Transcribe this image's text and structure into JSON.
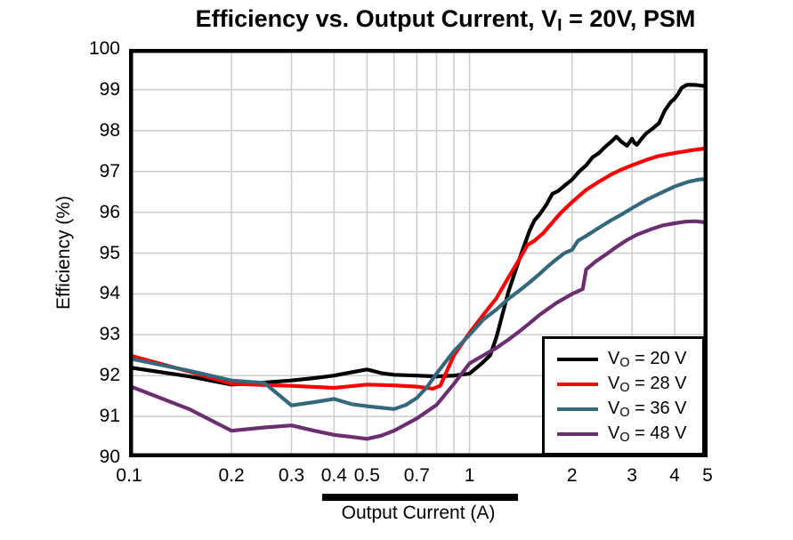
{
  "title": {
    "pre": "Efficiency vs. Output Current, V",
    "sub": "I",
    "post": " = 20V, PSM"
  },
  "colors": {
    "grid": "#CCCCCC",
    "frame": "#000000",
    "background": "#FFFFFF"
  },
  "legend": {
    "entries": [
      {
        "pre": "V",
        "sub": "O",
        "post": " = 20 V"
      },
      {
        "pre": "V",
        "sub": "O",
        "post": " = 28 V"
      },
      {
        "pre": "V",
        "sub": "O",
        "post": " = 36 V"
      },
      {
        "pre": "V",
        "sub": "O",
        "post": " = 48 V"
      }
    ]
  },
  "chart_data": {
    "type": "line",
    "title": "Efficiency vs. Output Current, VI = 20V, PSM",
    "xlabel": "Output Current (A)",
    "ylabel": "Efficiency (%)",
    "xscale": "log",
    "xlim": [
      0.1,
      5
    ],
    "ylim": [
      90,
      100
    ],
    "grid": true,
    "legend_position": "lower-right",
    "xticks": {
      "values": [
        0.1,
        0.2,
        0.3,
        0.4,
        0.5,
        0.7,
        1,
        2,
        3,
        4,
        5
      ],
      "labels": [
        "0.1",
        "0.2",
        "0.3",
        "0.4",
        "0.5",
        "0.7",
        "1",
        "2",
        "3",
        "4",
        "5"
      ]
    },
    "yticks": {
      "values": [
        90,
        91,
        92,
        93,
        94,
        95,
        96,
        97,
        98,
        99,
        100
      ],
      "labels": [
        "90",
        "91",
        "92",
        "93",
        "94",
        "95",
        "96",
        "97",
        "98",
        "99",
        "100"
      ]
    },
    "xgrid": [
      0.2,
      0.3,
      0.4,
      0.5,
      0.6,
      0.7,
      0.8,
      0.9,
      1,
      2,
      3,
      4
    ],
    "ygrid": [
      91,
      92,
      93,
      94,
      95,
      96,
      97,
      98,
      99
    ],
    "series": [
      {
        "id": "vo-20v",
        "name": "VO = 20 V",
        "color": "#000000",
        "points": [
          [
            0.1,
            92.2
          ],
          [
            0.15,
            91.98
          ],
          [
            0.2,
            91.78
          ],
          [
            0.25,
            91.83
          ],
          [
            0.3,
            91.88
          ],
          [
            0.35,
            91.94
          ],
          [
            0.4,
            92.0
          ],
          [
            0.45,
            92.08
          ],
          [
            0.5,
            92.15
          ],
          [
            0.55,
            92.06
          ],
          [
            0.6,
            92.02
          ],
          [
            0.7,
            92.0
          ],
          [
            0.8,
            91.98
          ],
          [
            0.9,
            92.0
          ],
          [
            1.0,
            92.05
          ],
          [
            1.08,
            92.28
          ],
          [
            1.15,
            92.5
          ],
          [
            1.2,
            92.95
          ],
          [
            1.3,
            94.05
          ],
          [
            1.4,
            94.85
          ],
          [
            1.45,
            95.2
          ],
          [
            1.5,
            95.55
          ],
          [
            1.55,
            95.8
          ],
          [
            1.6,
            95.93
          ],
          [
            1.68,
            96.18
          ],
          [
            1.75,
            96.45
          ],
          [
            1.82,
            96.52
          ],
          [
            1.9,
            96.65
          ],
          [
            2.0,
            96.8
          ],
          [
            2.1,
            97.0
          ],
          [
            2.2,
            97.15
          ],
          [
            2.3,
            97.35
          ],
          [
            2.4,
            97.45
          ],
          [
            2.5,
            97.6
          ],
          [
            2.6,
            97.72
          ],
          [
            2.7,
            97.85
          ],
          [
            2.8,
            97.72
          ],
          [
            2.9,
            97.63
          ],
          [
            3.0,
            97.8
          ],
          [
            3.05,
            97.7
          ],
          [
            3.1,
            97.65
          ],
          [
            3.2,
            97.8
          ],
          [
            3.3,
            97.93
          ],
          [
            3.45,
            98.05
          ],
          [
            3.6,
            98.18
          ],
          [
            3.75,
            98.5
          ],
          [
            3.9,
            98.7
          ],
          [
            4.0,
            98.78
          ],
          [
            4.1,
            98.9
          ],
          [
            4.2,
            99.05
          ],
          [
            4.35,
            99.12
          ],
          [
            4.6,
            99.12
          ],
          [
            4.8,
            99.1
          ],
          [
            5.0,
            99.08
          ]
        ]
      },
      {
        "id": "vo-28v",
        "name": "VO = 28 V",
        "color": "#FF0000",
        "points": [
          [
            0.1,
            92.5
          ],
          [
            0.15,
            92.1
          ],
          [
            0.2,
            91.8
          ],
          [
            0.25,
            91.77
          ],
          [
            0.3,
            91.75
          ],
          [
            0.4,
            91.7
          ],
          [
            0.5,
            91.78
          ],
          [
            0.6,
            91.76
          ],
          [
            0.7,
            91.73
          ],
          [
            0.78,
            91.68
          ],
          [
            0.82,
            91.75
          ],
          [
            0.9,
            92.5
          ],
          [
            1.0,
            93.05
          ],
          [
            1.1,
            93.5
          ],
          [
            1.2,
            93.9
          ],
          [
            1.3,
            94.4
          ],
          [
            1.4,
            94.85
          ],
          [
            1.48,
            95.2
          ],
          [
            1.55,
            95.3
          ],
          [
            1.65,
            95.5
          ],
          [
            1.75,
            95.75
          ],
          [
            1.85,
            95.98
          ],
          [
            2.0,
            96.25
          ],
          [
            2.2,
            96.55
          ],
          [
            2.4,
            96.75
          ],
          [
            2.6,
            96.92
          ],
          [
            2.8,
            97.05
          ],
          [
            3.0,
            97.15
          ],
          [
            3.3,
            97.28
          ],
          [
            3.6,
            97.38
          ],
          [
            4.0,
            97.45
          ],
          [
            4.5,
            97.52
          ],
          [
            5.0,
            97.57
          ]
        ]
      },
      {
        "id": "vo-36v",
        "name": "VO = 36 V",
        "color": "#35687D",
        "points": [
          [
            0.1,
            92.42
          ],
          [
            0.15,
            92.12
          ],
          [
            0.2,
            91.88
          ],
          [
            0.25,
            91.82
          ],
          [
            0.3,
            91.27
          ],
          [
            0.35,
            91.35
          ],
          [
            0.4,
            91.43
          ],
          [
            0.45,
            91.3
          ],
          [
            0.5,
            91.25
          ],
          [
            0.6,
            91.18
          ],
          [
            0.65,
            91.28
          ],
          [
            0.7,
            91.45
          ],
          [
            0.75,
            91.72
          ],
          [
            0.8,
            92.05
          ],
          [
            0.9,
            92.6
          ],
          [
            1.0,
            93.0
          ],
          [
            1.1,
            93.38
          ],
          [
            1.2,
            93.62
          ],
          [
            1.3,
            93.88
          ],
          [
            1.4,
            94.08
          ],
          [
            1.5,
            94.28
          ],
          [
            1.6,
            94.48
          ],
          [
            1.7,
            94.68
          ],
          [
            1.8,
            94.85
          ],
          [
            1.9,
            95.0
          ],
          [
            2.0,
            95.08
          ],
          [
            2.08,
            95.3
          ],
          [
            2.2,
            95.42
          ],
          [
            2.4,
            95.62
          ],
          [
            2.6,
            95.8
          ],
          [
            2.8,
            95.95
          ],
          [
            3.0,
            96.1
          ],
          [
            3.3,
            96.3
          ],
          [
            3.6,
            96.45
          ],
          [
            4.0,
            96.63
          ],
          [
            4.4,
            96.75
          ],
          [
            4.7,
            96.8
          ],
          [
            5.0,
            96.82
          ]
        ]
      },
      {
        "id": "vo-48v",
        "name": "VO = 48 V",
        "color": "#6B2E71",
        "points": [
          [
            0.1,
            91.75
          ],
          [
            0.15,
            91.18
          ],
          [
            0.2,
            90.65
          ],
          [
            0.25,
            90.73
          ],
          [
            0.3,
            90.78
          ],
          [
            0.35,
            90.65
          ],
          [
            0.4,
            90.55
          ],
          [
            0.45,
            90.5
          ],
          [
            0.5,
            90.45
          ],
          [
            0.55,
            90.53
          ],
          [
            0.6,
            90.65
          ],
          [
            0.7,
            90.95
          ],
          [
            0.8,
            91.28
          ],
          [
            0.9,
            91.8
          ],
          [
            1.0,
            92.3
          ],
          [
            1.1,
            92.5
          ],
          [
            1.2,
            92.68
          ],
          [
            1.3,
            92.88
          ],
          [
            1.4,
            93.08
          ],
          [
            1.5,
            93.28
          ],
          [
            1.6,
            93.48
          ],
          [
            1.8,
            93.78
          ],
          [
            2.0,
            94.0
          ],
          [
            2.1,
            94.08
          ],
          [
            2.15,
            94.12
          ],
          [
            2.2,
            94.6
          ],
          [
            2.35,
            94.8
          ],
          [
            2.5,
            94.95
          ],
          [
            2.7,
            95.15
          ],
          [
            2.9,
            95.32
          ],
          [
            3.1,
            95.45
          ],
          [
            3.4,
            95.58
          ],
          [
            3.7,
            95.68
          ],
          [
            4.0,
            95.73
          ],
          [
            4.3,
            95.77
          ],
          [
            4.6,
            95.78
          ],
          [
            5.0,
            95.75
          ]
        ]
      }
    ]
  }
}
